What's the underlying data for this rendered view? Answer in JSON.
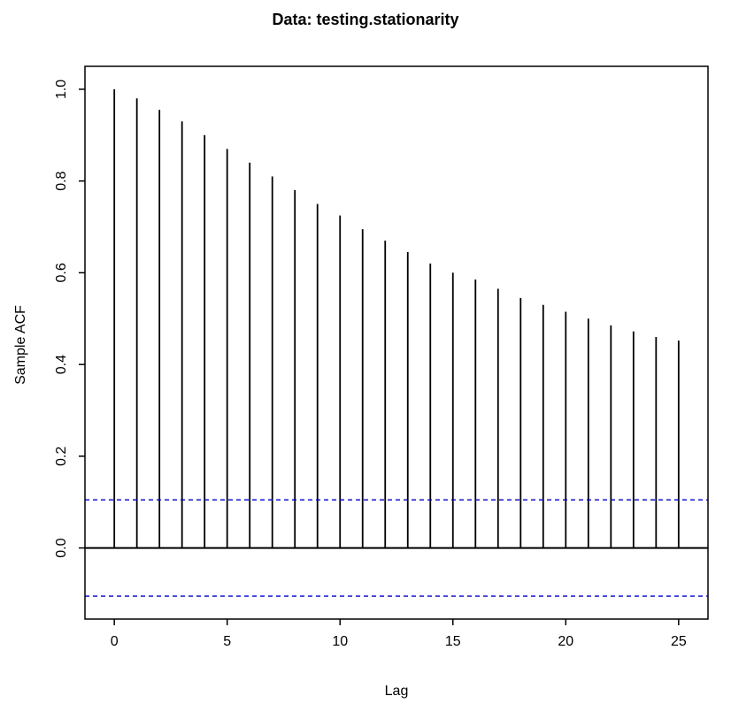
{
  "chart_data": {
    "type": "bar",
    "subtype": "acf-correlogram",
    "title": "Data: testing.stationarity",
    "xlabel": "Lag",
    "ylabel": "Sample ACF",
    "x": [
      0,
      1,
      2,
      3,
      4,
      5,
      6,
      7,
      8,
      9,
      10,
      11,
      12,
      13,
      14,
      15,
      16,
      17,
      18,
      19,
      20,
      21,
      22,
      23,
      24,
      25
    ],
    "values": [
      1.0,
      0.98,
      0.955,
      0.93,
      0.9,
      0.87,
      0.84,
      0.81,
      0.78,
      0.75,
      0.725,
      0.695,
      0.67,
      0.645,
      0.62,
      0.6,
      0.585,
      0.565,
      0.545,
      0.53,
      0.515,
      0.5,
      0.485,
      0.472,
      0.46,
      0.452
    ],
    "confidence_bands": [
      0.105,
      -0.105
    ],
    "xticks": [
      0,
      5,
      10,
      15,
      20,
      25
    ],
    "xtick_labels": [
      "0",
      "5",
      "10",
      "15",
      "20",
      "25"
    ],
    "yticks": [
      0.0,
      0.2,
      0.4,
      0.6,
      0.8,
      1.0
    ],
    "ytick_labels": [
      "0.0",
      "0.2",
      "0.4",
      "0.6",
      "0.8",
      "1.0"
    ],
    "xlim": [
      -1.3,
      26.3
    ],
    "ylim": [
      -0.155,
      1.05
    ],
    "grid": false,
    "legend": null,
    "bar_color": "#000000",
    "axis_color": "#000000",
    "band_color": "#0000cc",
    "background_color": "#ffffff"
  }
}
